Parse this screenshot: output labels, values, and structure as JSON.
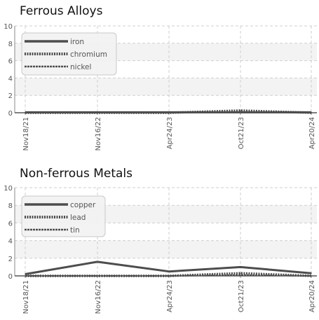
{
  "chart_data": [
    {
      "type": "line",
      "title": "Ferrous Alloys",
      "xlabel": "",
      "ylabel": "",
      "ylim": [
        0,
        10
      ],
      "yticks": [
        0,
        2,
        4,
        6,
        8,
        10
      ],
      "categories": [
        "Nov18/21",
        "Nov16/22",
        "Apr24/23",
        "Oct21/23",
        "Apr20/24"
      ],
      "grid": true,
      "legend": "top-left",
      "series": [
        {
          "name": "iron",
          "style": "solid",
          "color": "#4d4d4d",
          "values": [
            0.05,
            0.05,
            0.05,
            0.05,
            0.05
          ]
        },
        {
          "name": "chromium",
          "style": "dotted",
          "color": "#4d4d4d",
          "values": [
            0.0,
            0.0,
            0.0,
            0.25,
            0.0
          ]
        },
        {
          "name": "nickel",
          "style": "dashed",
          "color": "#4d4d4d",
          "values": [
            0.0,
            0.0,
            0.0,
            0.1,
            0.0
          ]
        }
      ]
    },
    {
      "type": "line",
      "title": "Non-ferrous Metals",
      "xlabel": "",
      "ylabel": "",
      "ylim": [
        0,
        10
      ],
      "yticks": [
        0,
        2,
        4,
        6,
        8,
        10
      ],
      "categories": [
        "Nov18/21",
        "Nov16/22",
        "Apr24/23",
        "Oct21/23",
        "Apr20/24"
      ],
      "grid": true,
      "legend": "top-left",
      "series": [
        {
          "name": "copper",
          "style": "solid",
          "color": "#4d4d4d",
          "values": [
            0.2,
            1.6,
            0.5,
            1.0,
            0.3
          ]
        },
        {
          "name": "lead",
          "style": "dotted",
          "color": "#4d4d4d",
          "values": [
            0.0,
            0.0,
            0.0,
            0.3,
            0.0
          ]
        },
        {
          "name": "tin",
          "style": "dashed",
          "color": "#4d4d4d",
          "values": [
            0.0,
            0.0,
            0.0,
            0.1,
            0.0
          ]
        }
      ]
    }
  ]
}
